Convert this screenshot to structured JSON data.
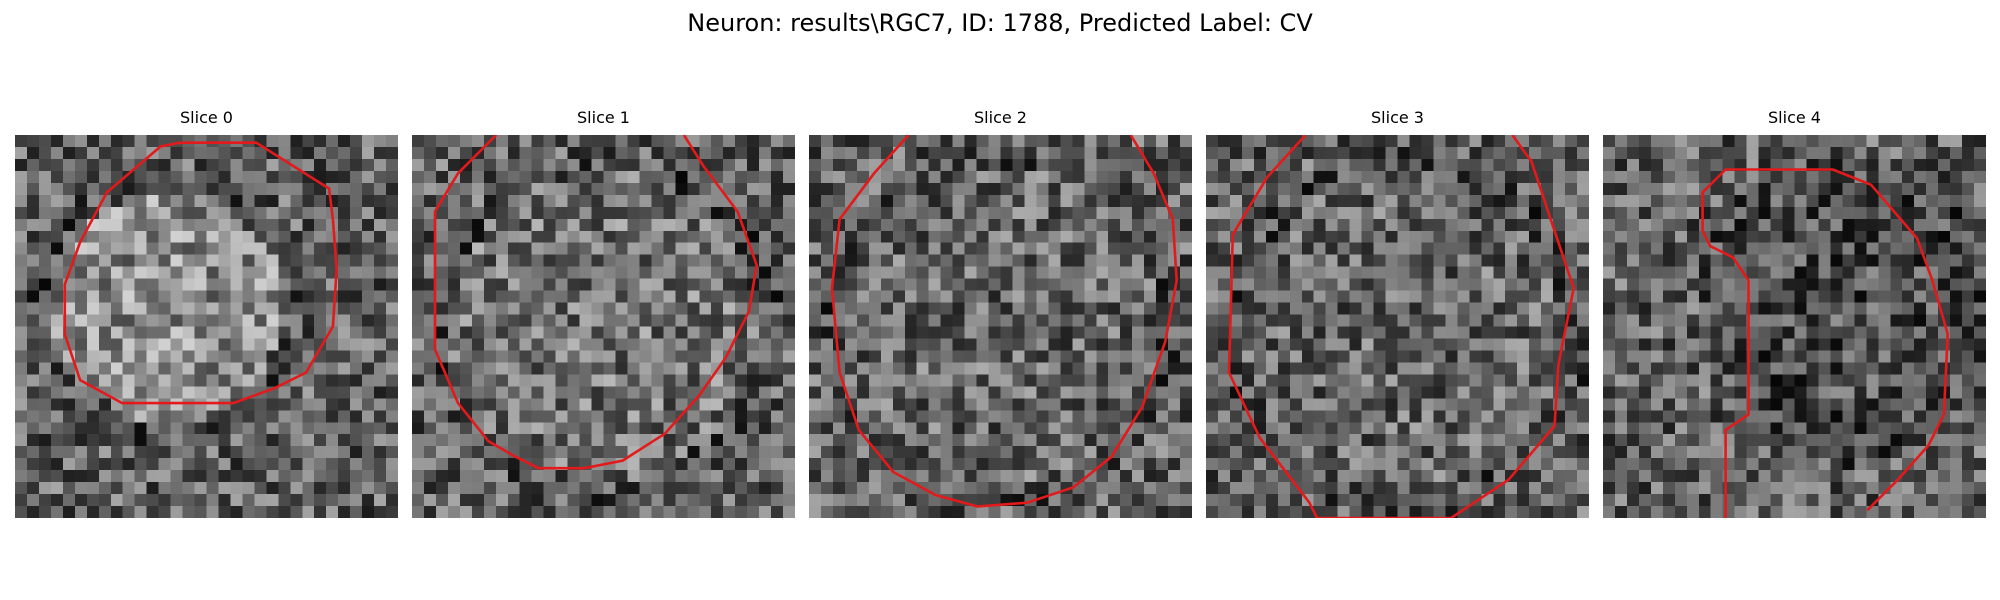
{
  "figure": {
    "title": "Neuron: results\\RGC7, ID: 1788, Predicted Label: CV"
  },
  "panels": [
    {
      "title": "Slice 0",
      "seed": 11,
      "center": [
        0.4,
        0.45
      ],
      "radius": 0.3,
      "brightness": 0.55,
      "contour": [
        [
          0.43,
          0.02
        ],
        [
          0.63,
          0.02
        ],
        [
          0.82,
          0.14
        ],
        [
          0.83,
          0.22
        ],
        [
          0.84,
          0.35
        ],
        [
          0.83,
          0.5
        ],
        [
          0.76,
          0.62
        ],
        [
          0.68,
          0.66
        ],
        [
          0.57,
          0.7
        ],
        [
          0.28,
          0.7
        ],
        [
          0.17,
          0.64
        ],
        [
          0.13,
          0.52
        ],
        [
          0.13,
          0.39
        ],
        [
          0.17,
          0.28
        ],
        [
          0.24,
          0.15
        ],
        [
          0.38,
          0.03
        ],
        [
          0.43,
          0.02
        ]
      ]
    },
    {
      "title": "Slice 1",
      "seed": 23,
      "center": [
        0.5,
        0.5
      ],
      "radius": 0.4,
      "brightness": 0.45,
      "contour": [
        [
          0.22,
          0.0
        ],
        [
          0.12,
          0.1
        ],
        [
          0.06,
          0.2
        ],
        [
          0.06,
          0.56
        ],
        [
          0.12,
          0.7
        ],
        [
          0.2,
          0.8
        ],
        [
          0.27,
          0.84
        ],
        [
          0.33,
          0.87
        ],
        [
          0.45,
          0.87
        ],
        [
          0.55,
          0.85
        ],
        [
          0.66,
          0.78
        ],
        [
          0.75,
          0.68
        ],
        [
          0.82,
          0.58
        ],
        [
          0.88,
          0.46
        ],
        [
          0.9,
          0.34
        ],
        [
          0.85,
          0.2
        ],
        [
          0.76,
          0.08
        ],
        [
          0.71,
          0.0
        ]
      ]
    },
    {
      "title": "Slice 2",
      "seed": 37,
      "center": [
        0.5,
        0.5
      ],
      "radius": 0.42,
      "brightness": 0.4,
      "contour": [
        [
          0.26,
          0.0
        ],
        [
          0.17,
          0.1
        ],
        [
          0.08,
          0.22
        ],
        [
          0.06,
          0.4
        ],
        [
          0.08,
          0.62
        ],
        [
          0.13,
          0.77
        ],
        [
          0.22,
          0.88
        ],
        [
          0.33,
          0.94
        ],
        [
          0.44,
          0.97
        ],
        [
          0.57,
          0.96
        ],
        [
          0.69,
          0.92
        ],
        [
          0.79,
          0.84
        ],
        [
          0.87,
          0.71
        ],
        [
          0.93,
          0.54
        ],
        [
          0.96,
          0.38
        ],
        [
          0.95,
          0.22
        ],
        [
          0.9,
          0.1
        ],
        [
          0.84,
          0.0
        ]
      ]
    },
    {
      "title": "Slice 3",
      "seed": 53,
      "center": [
        0.52,
        0.52
      ],
      "radius": 0.42,
      "brightness": 0.4,
      "contour": [
        [
          0.26,
          0.0
        ],
        [
          0.16,
          0.11
        ],
        [
          0.07,
          0.26
        ],
        [
          0.06,
          0.62
        ],
        [
          0.14,
          0.79
        ],
        [
          0.27,
          0.96
        ],
        [
          0.29,
          1.0
        ],
        [
          0.64,
          1.0
        ],
        [
          0.79,
          0.9
        ],
        [
          0.91,
          0.76
        ],
        [
          0.92,
          0.6
        ],
        [
          0.96,
          0.4
        ],
        [
          0.9,
          0.22
        ],
        [
          0.85,
          0.07
        ],
        [
          0.8,
          0.0
        ]
      ]
    },
    {
      "title": "Slice 4",
      "seed": 71,
      "center": [
        0.65,
        0.45
      ],
      "radius": 0.35,
      "brightness": 0.3,
      "contour": [
        [
          0.32,
          1.0
        ],
        [
          0.32,
          0.77
        ],
        [
          0.38,
          0.73
        ],
        [
          0.38,
          0.38
        ],
        [
          0.34,
          0.32
        ],
        [
          0.28,
          0.29
        ],
        [
          0.26,
          0.25
        ],
        [
          0.26,
          0.15
        ],
        [
          0.32,
          0.09
        ],
        [
          0.46,
          0.09
        ],
        [
          0.6,
          0.09
        ],
        [
          0.7,
          0.13
        ],
        [
          0.82,
          0.27
        ],
        [
          0.86,
          0.38
        ],
        [
          0.9,
          0.52
        ],
        [
          0.89,
          0.73
        ],
        [
          0.85,
          0.81
        ],
        [
          0.77,
          0.9
        ],
        [
          0.69,
          0.98
        ]
      ]
    }
  ]
}
